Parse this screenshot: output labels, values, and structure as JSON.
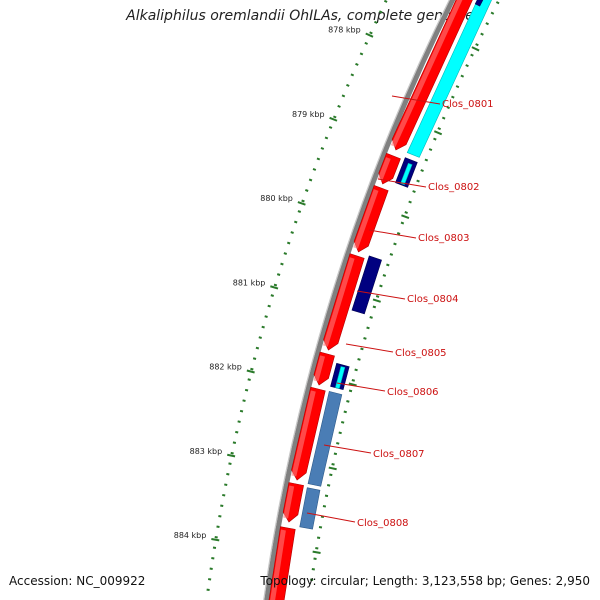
{
  "title": "Alkaliphilus oremlandii OhILAs, complete genome",
  "footer": {
    "accession": "Accession: NC_009922",
    "summary": "Topology: circular; Length: 3,123,558 bp; Genes: 2,950"
  },
  "colors": {
    "backbone": "#808080",
    "forward_gene": "#ff0000",
    "reverse_gene_cyan": "#00ffff",
    "reverse_gene_navy": "#000080",
    "reverse_gene_steel": "#4a7db5",
    "tick": "#2a7a2a",
    "label": "#cc1111"
  },
  "scale": {
    "tick_labels": [
      "878 kbp",
      "879 kbp",
      "880 kbp",
      "881 kbp",
      "882 kbp",
      "883 kbp",
      "884 kbp"
    ]
  },
  "genes": [
    {
      "label": "Clos_0801"
    },
    {
      "label": "Clos_0802"
    },
    {
      "label": "Clos_0803"
    },
    {
      "label": "Clos_0804"
    },
    {
      "label": "Clos_0805"
    },
    {
      "label": "Clos_0806"
    },
    {
      "label": "Clos_0807"
    },
    {
      "label": "Clos_0808"
    }
  ]
}
